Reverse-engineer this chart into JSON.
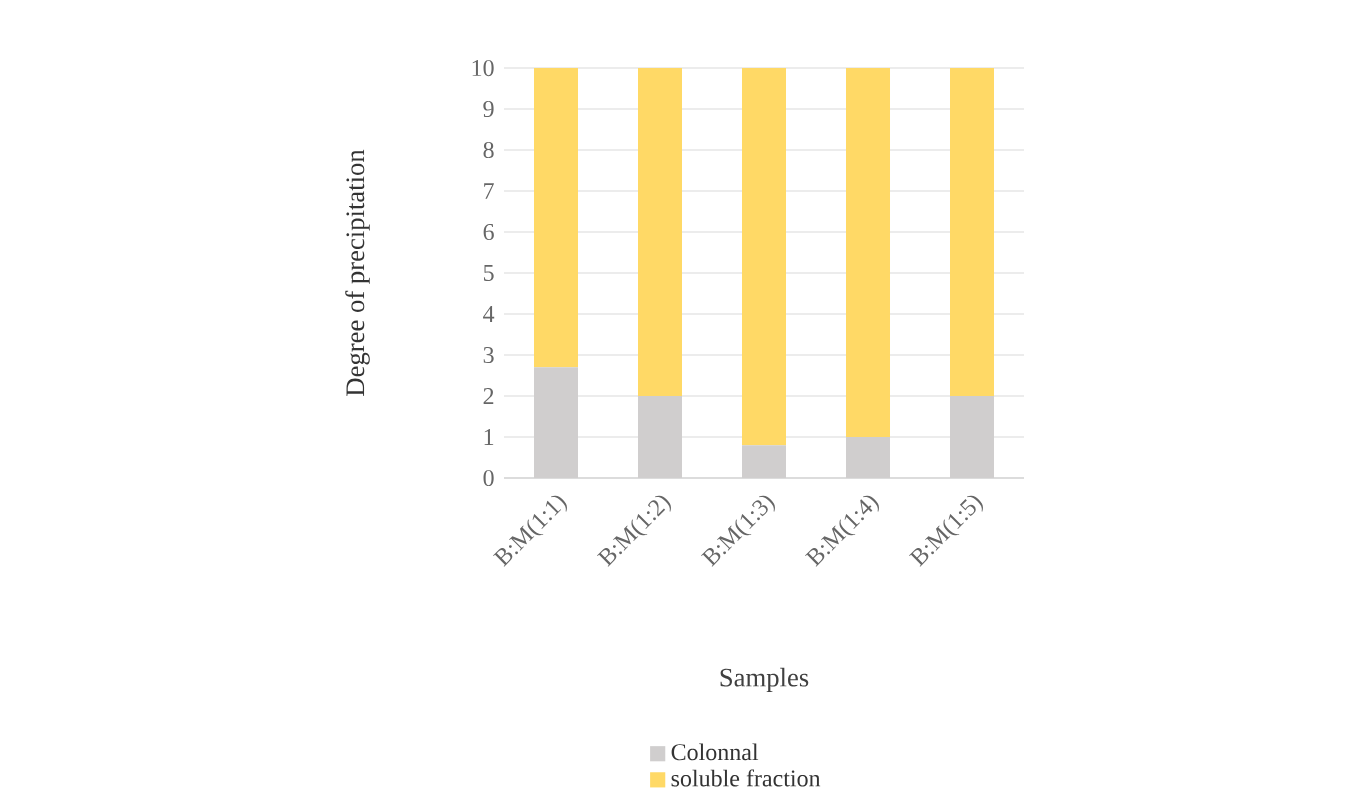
{
  "chart_data": {
    "type": "bar",
    "stacked": true,
    "xlabel": "Samples",
    "ylabel": "Degree of precipitation",
    "categories": [
      "B:M(1:1)",
      "B:M(1:2)",
      "B:M(1:3)",
      "B:M(1:4)",
      "B:M(1:5)"
    ],
    "series": [
      {
        "name": "Colonnal",
        "color": "#d0cece",
        "values": [
          2.7,
          2.0,
          0.8,
          1.0,
          2.0
        ]
      },
      {
        "name": "soluble fraction",
        "color": "#ffd966",
        "values": [
          7.3,
          8.0,
          9.2,
          9.0,
          8.0
        ]
      }
    ],
    "ylim": [
      0,
      10
    ],
    "yticks": [
      0,
      1,
      2,
      3,
      4,
      5,
      6,
      7,
      8,
      9,
      10
    ],
    "grid": "y",
    "legend": "bottom"
  }
}
